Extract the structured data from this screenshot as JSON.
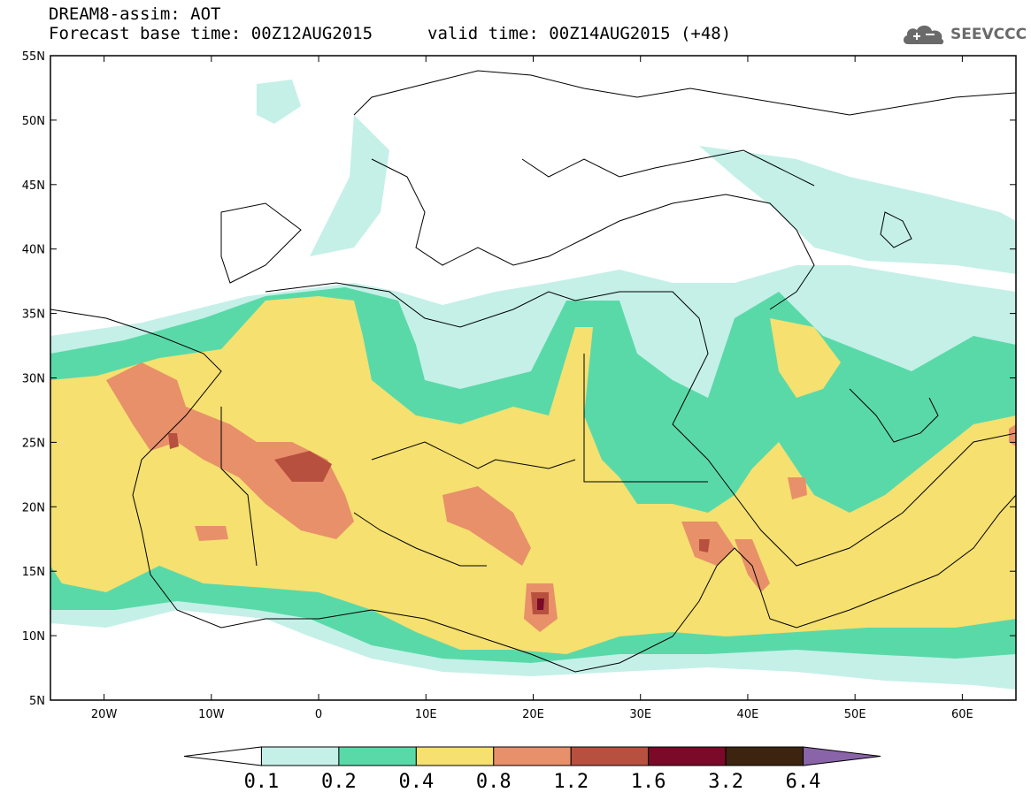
{
  "header": {
    "title": "DREAM8-assim: AOT",
    "base_time": "Forecast base time: 00Z12AUG2015",
    "valid_time": "valid time: 00Z14AUG2015 (+48)"
  },
  "logo": {
    "text": "SEEVCCC",
    "icon": "cloud-logo-icon"
  },
  "map": {
    "lat_labels": [
      "55N",
      "50N",
      "45N",
      "40N",
      "35N",
      "30N",
      "25N",
      "20N",
      "15N",
      "10N",
      "5N"
    ],
    "lon_labels": [
      "20W",
      "10W",
      "0",
      "10E",
      "20E",
      "30E",
      "40E",
      "50E",
      "60E"
    ],
    "lon_range": [
      -25,
      65
    ],
    "lat_range": [
      5,
      55
    ]
  },
  "colorbar": {
    "levels": [
      "0.1",
      "0.2",
      "0.4",
      "0.8",
      "1.2",
      "1.6",
      "3.2",
      "6.4"
    ],
    "colors": [
      "#ffffff",
      "#c4f0e8",
      "#5ad9a8",
      "#f5e070",
      "#e8906a",
      "#b8503f",
      "#7a0a28",
      "#3c2410",
      "#8a64a8"
    ]
  }
}
